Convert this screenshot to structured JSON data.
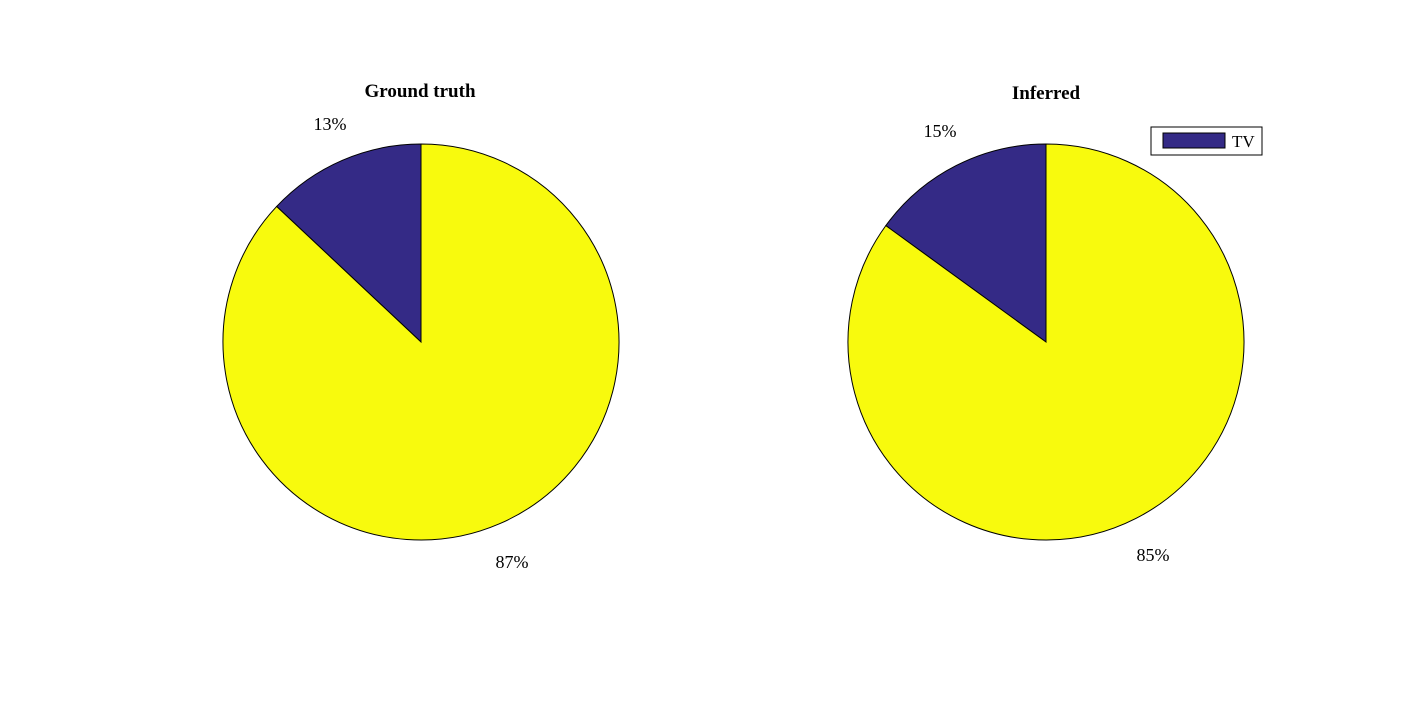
{
  "chart_data": [
    {
      "type": "pie",
      "title": "Ground truth",
      "slices": [
        {
          "label": "13%",
          "value": 13,
          "color": "#342a86",
          "legend": "TV"
        },
        {
          "label": "87%",
          "value": 87,
          "color": "#f8fa0d"
        }
      ]
    },
    {
      "type": "pie",
      "title": "Inferred",
      "legend": {
        "placement": "top-right",
        "entries": [
          {
            "name": "TV",
            "color": "#342a86"
          }
        ]
      },
      "slices": [
        {
          "label": "15%",
          "value": 15,
          "color": "#342a86",
          "legend": "TV"
        },
        {
          "label": "85%",
          "value": 85,
          "color": "#f8fa0d"
        }
      ]
    }
  ]
}
